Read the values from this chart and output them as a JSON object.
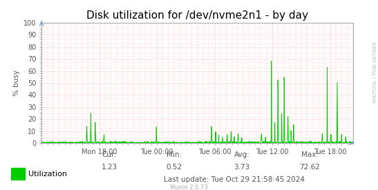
{
  "title": "Disk utilization for /dev/nvme2n1 - by day",
  "ylabel": "% busy",
  "ylim": [
    0,
    100
  ],
  "yticks": [
    0,
    10,
    20,
    30,
    40,
    50,
    60,
    70,
    80,
    90,
    100
  ],
  "xtick_labels": [
    "Mon 18:00",
    "Tue 00:00",
    "Tue 06:00",
    "Tue 12:00",
    "Tue 18:00"
  ],
  "xtick_positions": [
    0.185,
    0.37,
    0.555,
    0.74,
    0.925
  ],
  "legend_label": "Utilization",
  "cur_label": "Cur:",
  "cur": "1.23",
  "min_label": "Min:",
  "min": "0.52",
  "avg_label": "Avg:",
  "avg": "3.73",
  "max_label": "Max:",
  "max": "72.62",
  "last_update": "Last update: Tue Oct 29 21:58:45 2024",
  "munin_version": "Munin 2.0.73",
  "line_color": "#00CC00",
  "bg_color": "#FFFFFF",
  "grid_color": "#FF9999",
  "right_label": "RRDTOOL / TOBI OETIKER",
  "title_fontsize": 11,
  "axis_label_fontsize": 7.5,
  "tick_fontsize": 7,
  "legend_fontsize": 8,
  "stats_fontsize": 7.5,
  "right_label_color": "#BBBBBB",
  "text_color": "#555555"
}
